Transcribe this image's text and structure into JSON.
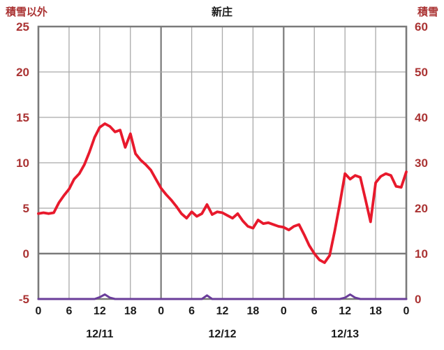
{
  "chart_data": {
    "type": "line",
    "title": "新庄",
    "x_hours_span": 72,
    "x_step_hours": 1,
    "x_tick_interval": 6,
    "x_tick_labels": [
      "0",
      "6",
      "12",
      "18",
      "0",
      "6",
      "12",
      "18",
      "0",
      "6",
      "12",
      "18",
      "0"
    ],
    "date_labels": [
      "12/11",
      "12/12",
      "12/13"
    ],
    "grid": {
      "minor_color": "#a9a9a9",
      "major_color": "#7a7a7a",
      "frame_color": "#7a7a7a",
      "x_label_color": "#1a1a1a"
    },
    "left_axis": {
      "title": "積雪以外",
      "min": -5,
      "max": 25,
      "ticks": [
        25,
        20,
        15,
        10,
        5,
        0,
        -5
      ],
      "label_color": "#aa3333"
    },
    "right_axis": {
      "title": "積雪",
      "min": 0,
      "max": 60,
      "ticks": [
        60,
        50,
        40,
        30,
        20,
        10,
        0
      ],
      "label_color": "#aa3333"
    },
    "series": [
      {
        "name": "積雪以外",
        "axis": "left",
        "color": "#e8192c",
        "width": 3.8,
        "values": [
          4.4,
          4.5,
          4.4,
          4.5,
          5.6,
          6.4,
          7.1,
          8.2,
          8.8,
          9.8,
          11.2,
          12.8,
          13.9,
          14.3,
          14.0,
          13.4,
          13.6,
          11.7,
          13.2,
          11.0,
          10.3,
          9.8,
          9.2,
          8.2,
          7.2,
          6.5,
          5.9,
          5.2,
          4.4,
          3.9,
          4.6,
          4.1,
          4.4,
          5.4,
          4.3,
          4.6,
          4.5,
          4.2,
          3.9,
          4.4,
          3.6,
          3.0,
          2.8,
          3.7,
          3.3,
          3.4,
          3.2,
          3.0,
          2.9,
          2.6,
          3.0,
          3.2,
          2.1,
          0.9,
          0.0,
          -0.7,
          -1.0,
          -0.2,
          2.5,
          5.5,
          8.8,
          8.2,
          8.6,
          8.4,
          6.0,
          3.5,
          7.8,
          8.5,
          8.8,
          8.6,
          7.4,
          7.3,
          9.0
        ]
      },
      {
        "name": "積雪",
        "axis": "right",
        "color": "#6a3d9a",
        "width": 3,
        "values": [
          0,
          0,
          0,
          0,
          0,
          0,
          0,
          0,
          0,
          0,
          0,
          0,
          0.4,
          1.0,
          0.3,
          0,
          0,
          0,
          0,
          0,
          0,
          0,
          0,
          0,
          0,
          0,
          0,
          0,
          0,
          0,
          0,
          0,
          0,
          0.8,
          0,
          0,
          0,
          0,
          0,
          0,
          0,
          0,
          0,
          0,
          0,
          0,
          0,
          0,
          0,
          0,
          0,
          0,
          0,
          0,
          0,
          0,
          0,
          0,
          0,
          0,
          0.3,
          1.0,
          0.3,
          0,
          0,
          0,
          0,
          0,
          0,
          0,
          0,
          0,
          0
        ]
      }
    ]
  }
}
